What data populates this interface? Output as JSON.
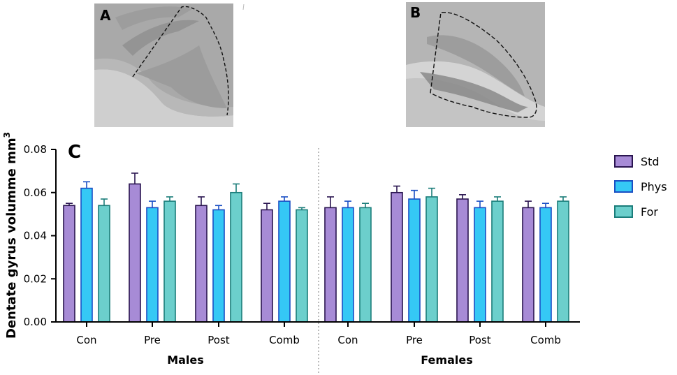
{
  "panels": {
    "a_label": "A",
    "b_label": "B",
    "c_label": "C"
  },
  "chart_data": {
    "type": "bar",
    "ylabel": "Dentate gyrus volumme mm",
    "ylabel_superscript": "3",
    "ylim": [
      0,
      0.08
    ],
    "yticks": [
      "0.00",
      "0.02",
      "0.04",
      "0.06",
      "0.08"
    ],
    "ytick_values": [
      0,
      0.02,
      0.04,
      0.06,
      0.08
    ],
    "groups": [
      {
        "name": "Males",
        "categories": [
          "Con",
          "Pre",
          "Post",
          "Comb"
        ]
      },
      {
        "name": "Females",
        "categories": [
          "Con",
          "Pre",
          "Post",
          "Comb"
        ]
      }
    ],
    "series": [
      {
        "name": "Std",
        "fill": "#a78bd6",
        "stroke": "#2a1550",
        "values": [
          0.054,
          0.064,
          0.054,
          0.052,
          0.053,
          0.06,
          0.057,
          0.053
        ],
        "errors": [
          0.001,
          0.005,
          0.004,
          0.003,
          0.005,
          0.003,
          0.002,
          0.003
        ]
      },
      {
        "name": "Phys",
        "fill": "#35c8f5",
        "stroke": "#1a4fc4",
        "values": [
          0.062,
          0.053,
          0.052,
          0.056,
          0.053,
          0.057,
          0.053,
          0.053
        ],
        "errors": [
          0.003,
          0.003,
          0.002,
          0.002,
          0.003,
          0.004,
          0.003,
          0.002
        ]
      },
      {
        "name": "For",
        "fill": "#6ccfcc",
        "stroke": "#1b7d7a",
        "values": [
          0.054,
          0.056,
          0.06,
          0.052,
          0.053,
          0.058,
          0.056,
          0.056
        ],
        "errors": [
          0.003,
          0.002,
          0.004,
          0.001,
          0.002,
          0.004,
          0.002,
          0.002
        ]
      }
    ],
    "legend_position": "right"
  }
}
